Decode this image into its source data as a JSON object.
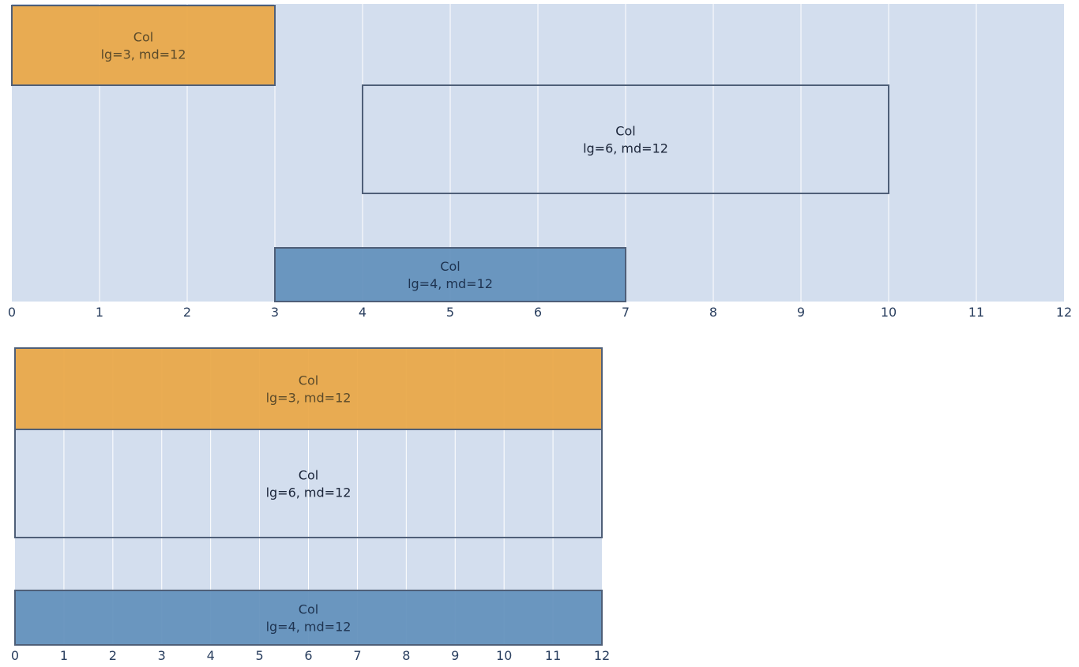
{
  "figures": [
    {
      "id": "lg",
      "tick_labels": [
        "0",
        "1",
        "2",
        "3",
        "4",
        "5",
        "6",
        "7",
        "8",
        "9",
        "10",
        "11",
        "12"
      ],
      "columns": [
        {
          "line1": "Col",
          "line2": "lg=3, md=12",
          "start": 0,
          "end": 3,
          "row": 0,
          "style": "orange"
        },
        {
          "line1": "Col",
          "line2": "lg=6, md=12",
          "start": 4,
          "end": 10,
          "row": 1,
          "style": "outline"
        },
        {
          "line1": "Col",
          "line2": "lg=4, md=12",
          "start": 3,
          "end": 7,
          "row": 2,
          "style": "blue"
        }
      ]
    },
    {
      "id": "md",
      "tick_labels": [
        "0",
        "1",
        "2",
        "3",
        "4",
        "5",
        "6",
        "7",
        "8",
        "9",
        "10",
        "11",
        "12"
      ],
      "columns": [
        {
          "line1": "Col",
          "line2": "lg=3, md=12",
          "start": 0,
          "end": 12,
          "row": 0,
          "style": "orange"
        },
        {
          "line1": "Col",
          "line2": "lg=6, md=12",
          "start": 0,
          "end": 12,
          "row": 1,
          "style": "outline"
        },
        {
          "line1": "Col",
          "line2": "lg=4, md=12",
          "start": 0,
          "end": 12,
          "row": 2,
          "style": "blue"
        }
      ]
    }
  ],
  "colors": {
    "grid_bg": "#d3deee",
    "grid_line": "#ffffff",
    "border": "#4f5f78",
    "orange": "#e9a746",
    "blue": "#6290bb",
    "text_on_orange": "#5a4a2a",
    "text_on_blue": "#1e3350",
    "text_default": "#1a2438"
  }
}
